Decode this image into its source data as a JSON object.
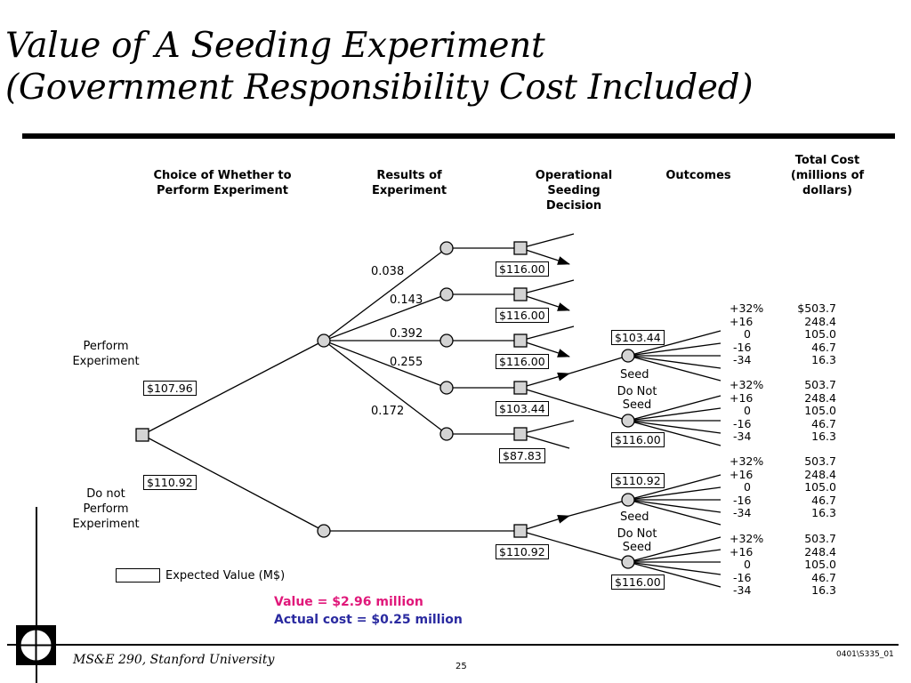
{
  "title": {
    "line1": "Value of A Seeding Experiment",
    "line2": "(Government Responsibility Cost Included)"
  },
  "headers": {
    "choice": "Choice of Whether to\nPerform Experiment",
    "results": "Results of\nExperiment",
    "operational": "Operational\nSeeding\nDecision",
    "outcomes": "Outcomes",
    "total_cost": "Total Cost\n(millions of\ndollars)"
  },
  "choices": {
    "perform": "Perform\nExperiment",
    "do_not_perform": "Do not\nPerform\nExperiment"
  },
  "probabilities": [
    "0.038",
    "0.143",
    "0.392",
    "0.255",
    "0.172"
  ],
  "expected_values": {
    "root": "$107.96",
    "do_not_perform": "$110.92",
    "results": [
      "$116.00",
      "$116.00",
      "$116.00",
      "$103.44",
      "$87.83"
    ],
    "seed_expanded": "$103.44",
    "no_seed_expanded": "$116.00",
    "no_exp_decision": "$110.92",
    "no_exp_seed": "$110.92",
    "no_exp_no_seed": "$116.00"
  },
  "decision_labels": {
    "seed": "Seed",
    "do_not_seed": "Do Not\nSeed"
  },
  "outcome_tables": [
    {
      "rows": [
        [
          "+32%",
          "$503.7"
        ],
        [
          "+16",
          "248.4"
        ],
        [
          "0",
          "105.0"
        ],
        [
          "-16",
          "46.7"
        ],
        [
          "-34",
          "16.3"
        ]
      ]
    },
    {
      "rows": [
        [
          "+32%",
          "503.7"
        ],
        [
          "+16",
          "248.4"
        ],
        [
          "0",
          "105.0"
        ],
        [
          "-16",
          "46.7"
        ],
        [
          "-34",
          "16.3"
        ]
      ]
    },
    {
      "rows": [
        [
          "+32%",
          "503.7"
        ],
        [
          "+16",
          "248.4"
        ],
        [
          "0",
          "105.0"
        ],
        [
          "-16",
          "46.7"
        ],
        [
          "-34",
          "16.3"
        ]
      ]
    },
    {
      "rows": [
        [
          "+32%",
          "503.7"
        ],
        [
          "+16",
          "248.4"
        ],
        [
          "0",
          "105.0"
        ],
        [
          "-16",
          "46.7"
        ],
        [
          "-34",
          "16.3"
        ]
      ]
    }
  ],
  "legend": {
    "label": "Expected Value (M$)"
  },
  "summary": {
    "value": "Value = $2.96 million",
    "actual_cost": "Actual cost = $0.25 million",
    "value_color": "#e0187a",
    "cost_color": "#2a2aa0"
  },
  "footer": {
    "course": "MS&E 290, Stanford University",
    "page": "25",
    "code": "0401\\S335_01"
  }
}
